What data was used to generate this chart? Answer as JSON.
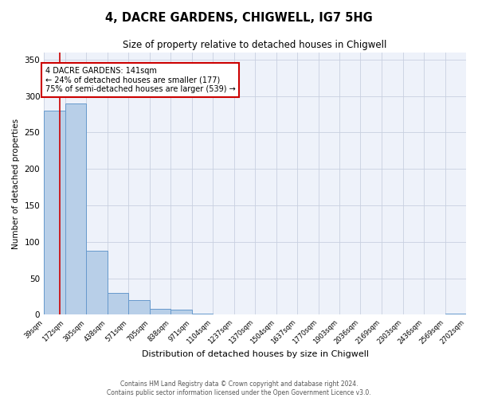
{
  "title": "4, DACRE GARDENS, CHIGWELL, IG7 5HG",
  "subtitle": "Size of property relative to detached houses in Chigwell",
  "xlabel": "Distribution of detached houses by size in Chigwell",
  "ylabel": "Number of detached properties",
  "bin_edges": [
    39,
    172,
    305,
    438,
    571,
    705,
    838,
    971,
    1104,
    1237,
    1370,
    1504,
    1637,
    1770,
    1903,
    2036,
    2169,
    2303,
    2436,
    2569,
    2702
  ],
  "bar_heights": [
    280,
    290,
    88,
    30,
    20,
    8,
    7,
    2,
    1,
    0,
    0,
    0,
    0,
    0,
    0,
    0,
    0,
    0,
    0,
    2
  ],
  "bar_color": "#b8cfe8",
  "bar_edge_color": "#6699cc",
  "property_size": 141,
  "property_line_color": "#cc0000",
  "annotation_box_color": "#cc0000",
  "annotation_text_line1": "4 DACRE GARDENS: 141sqm",
  "annotation_text_line2": "← 24% of detached houses are smaller (177)",
  "annotation_text_line3": "75% of semi-detached houses are larger (539) →",
  "ylim": [
    0,
    360
  ],
  "background_color": "#eef2fa",
  "grid_color": "#c8d0e0",
  "footer_line1": "Contains HM Land Registry data © Crown copyright and database right 2024.",
  "footer_line2": "Contains public sector information licensed under the Open Government Licence v3.0."
}
